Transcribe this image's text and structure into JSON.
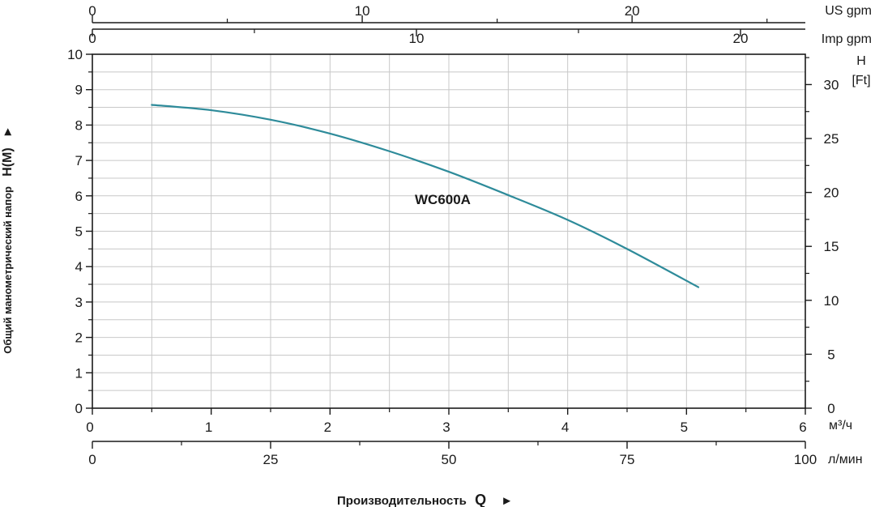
{
  "chart_data": {
    "type": "line",
    "series": [
      {
        "name": "WC600A",
        "color": "#2e8b9a",
        "x": [
          0.5,
          1.0,
          1.5,
          2.0,
          2.5,
          3.0,
          3.5,
          4.0,
          4.5,
          5.1
        ],
        "y": [
          8.57,
          8.42,
          8.15,
          7.76,
          7.26,
          6.68,
          6.02,
          5.32,
          4.5,
          3.42
        ]
      }
    ],
    "x_axis": {
      "unit": "м³/ч",
      "range": [
        0,
        6
      ],
      "ticks": [
        "0",
        "1",
        "2",
        "3",
        "4",
        "5",
        "6"
      ]
    },
    "x_axis_lpm": {
      "unit": "л/мин",
      "range": [
        0,
        100
      ],
      "ticks": [
        "0",
        "25",
        "50",
        "75",
        "100"
      ]
    },
    "top_axis_us": {
      "unit": "US  gpm",
      "range": [
        0,
        26.42
      ],
      "ticks": [
        "0",
        "10",
        "20"
      ]
    },
    "top_axis_imp": {
      "unit": "Imp gpm",
      "range": [
        0,
        22.0
      ],
      "ticks": [
        "0",
        "10",
        "20"
      ]
    },
    "y_axis": {
      "label": "Общий манометрический напор",
      "symbol": "H(M)",
      "range": [
        0,
        10
      ],
      "ticks": [
        "0",
        "1",
        "2",
        "3",
        "4",
        "5",
        "6",
        "7",
        "8",
        "9",
        "10"
      ]
    },
    "y_axis_right": {
      "unit_line1": "H",
      "unit_line2": "[Ft]",
      "range": [
        0,
        32.81
      ],
      "ticks": [
        "0",
        "5",
        "10",
        "15",
        "20",
        "25",
        "30"
      ]
    },
    "x_title": "Производительность",
    "x_symbol": "Q",
    "arrow": "►",
    "grid": true,
    "line_color": "#2e8b9a",
    "grid_color": "#c8c8c8"
  }
}
